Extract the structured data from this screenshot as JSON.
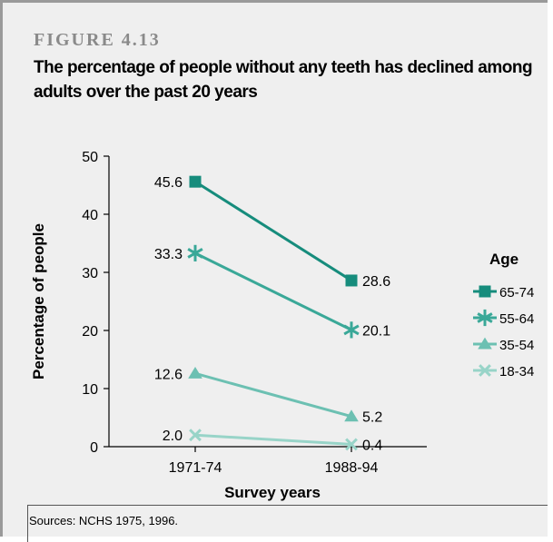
{
  "figure": {
    "label": "FIGURE 4.13",
    "title": "The percentage of people without any teeth has declined among adults over the past 20 years",
    "source": "Sources: NCHS 1975, 1996."
  },
  "chart_data": {
    "type": "line",
    "categories": [
      "1971-74",
      "1988-94"
    ],
    "xlabel": "Survey years",
    "ylabel": "Percentage of people",
    "ylim": [
      0,
      50
    ],
    "yticks": [
      0,
      10,
      20,
      30,
      40,
      50
    ],
    "grid": false,
    "legend": {
      "title": "Age",
      "placement": "right"
    },
    "series": [
      {
        "name": "65-74",
        "values": [
          45.6,
          28.6
        ],
        "labels": [
          "45.6",
          "28.6"
        ],
        "marker": "square",
        "color": "#168c7c"
      },
      {
        "name": "55-64",
        "values": [
          33.3,
          20.1
        ],
        "labels": [
          "33.3",
          "20.1"
        ],
        "marker": "star",
        "color": "#3aa898"
      },
      {
        "name": "35-54",
        "values": [
          12.6,
          5.2
        ],
        "labels": [
          "12.6",
          "5.2"
        ],
        "marker": "triangle",
        "color": "#6cc0b2"
      },
      {
        "name": "18-34",
        "values": [
          2.0,
          0.4
        ],
        "labels": [
          "2.0",
          "0.4"
        ],
        "marker": "x",
        "color": "#98d4c8"
      }
    ]
  }
}
